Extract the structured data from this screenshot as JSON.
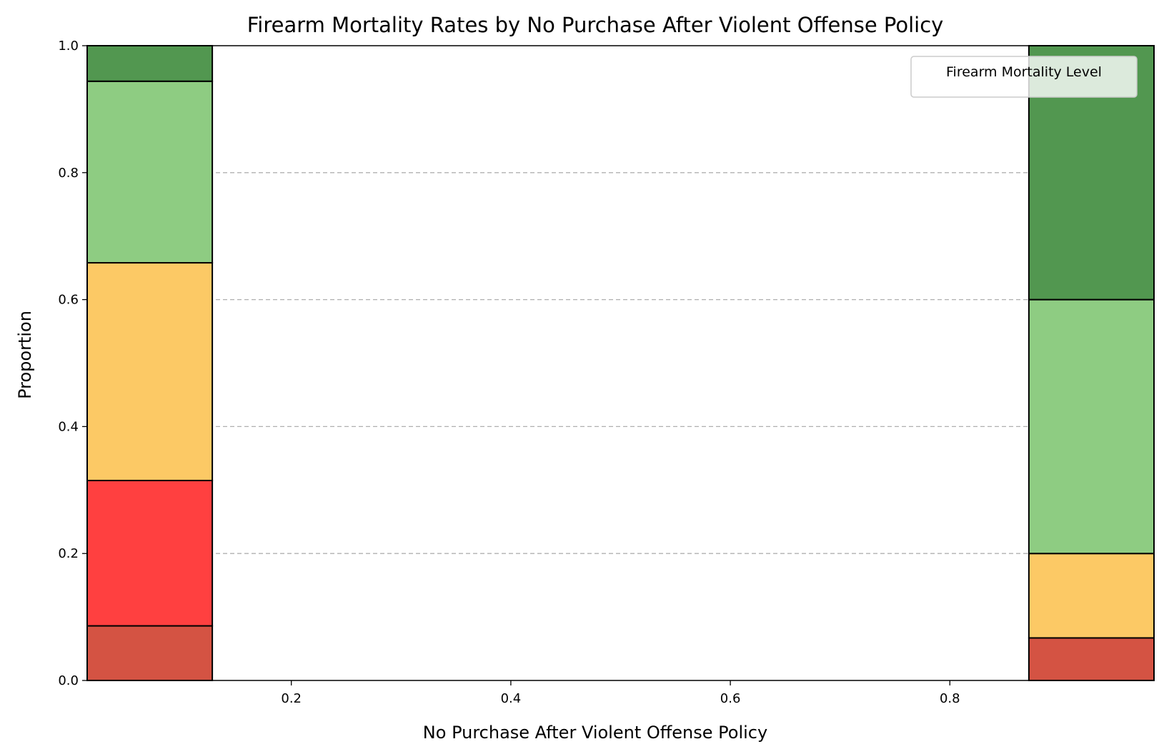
{
  "chart_data": {
    "type": "bar",
    "stacked": true,
    "normalized": true,
    "title": "Firearm Mortality Rates by No Purchase After Violent Offense Policy",
    "xlabel": "No Purchase After Violent Offense Policy",
    "ylabel": "Proportion",
    "xlim": [
      0.014,
      0.986
    ],
    "ylim": [
      0,
      1
    ],
    "x_ticks": [
      "0.2",
      "0.4",
      "0.6",
      "0.8"
    ],
    "x_tick_values": [
      0.2,
      0.4,
      0.6,
      0.8
    ],
    "y_ticks": [
      "0.0",
      "0.2",
      "0.4",
      "0.6",
      "0.8",
      "1.0"
    ],
    "y_tick_values": [
      0.0,
      0.2,
      0.4,
      0.6,
      0.8,
      1.0
    ],
    "grid": "y-dashed",
    "legend": {
      "title": "Firearm Mortality Level",
      "placement": "top-right",
      "entries": []
    },
    "bins": [
      {
        "x_start": 0.014,
        "x_end": 0.128,
        "segments": [
          {
            "value": 0.086,
            "color": "#d45343"
          },
          {
            "value": 0.229,
            "color": "#ff4040"
          },
          {
            "value": 0.343,
            "color": "#fcc965"
          },
          {
            "value": 0.286,
            "color": "#8ecc82"
          },
          {
            "value": 0.056,
            "color": "#529750"
          }
        ]
      },
      {
        "x_start": 0.872,
        "x_end": 0.986,
        "segments": [
          {
            "value": 0.067,
            "color": "#d45343"
          },
          {
            "value": 0.133,
            "color": "#fcc965"
          },
          {
            "value": 0.4,
            "color": "#8ecc82"
          },
          {
            "value": 0.4,
            "color": "#529750"
          }
        ]
      }
    ]
  }
}
